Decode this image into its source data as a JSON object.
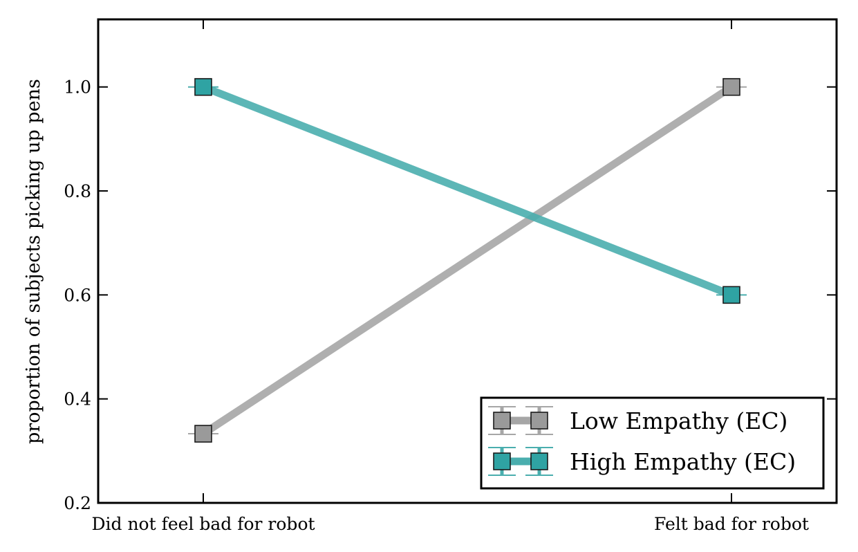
{
  "chart_data": {
    "type": "line",
    "categories": [
      "Did not feel bad for robot",
      "Felt bad for robot"
    ],
    "ylabel": "proportion of subjects picking up pens",
    "ylim": [
      0.2,
      1.13
    ],
    "yticks": [
      "0.2",
      "0.4",
      "0.6",
      "0.8",
      "1.0"
    ],
    "grid": false,
    "legend_position": "bottom-right",
    "series": [
      {
        "name": "Low Empathy (EC)",
        "values": [
          0.333,
          1.0
        ],
        "color": "#a6a6a6",
        "marker_color": "#9a9a9a"
      },
      {
        "name": "High Empathy (EC)",
        "values": [
          1.0,
          0.6
        ],
        "color": "#4aaeae",
        "marker_color": "#2fa3a3"
      }
    ]
  }
}
